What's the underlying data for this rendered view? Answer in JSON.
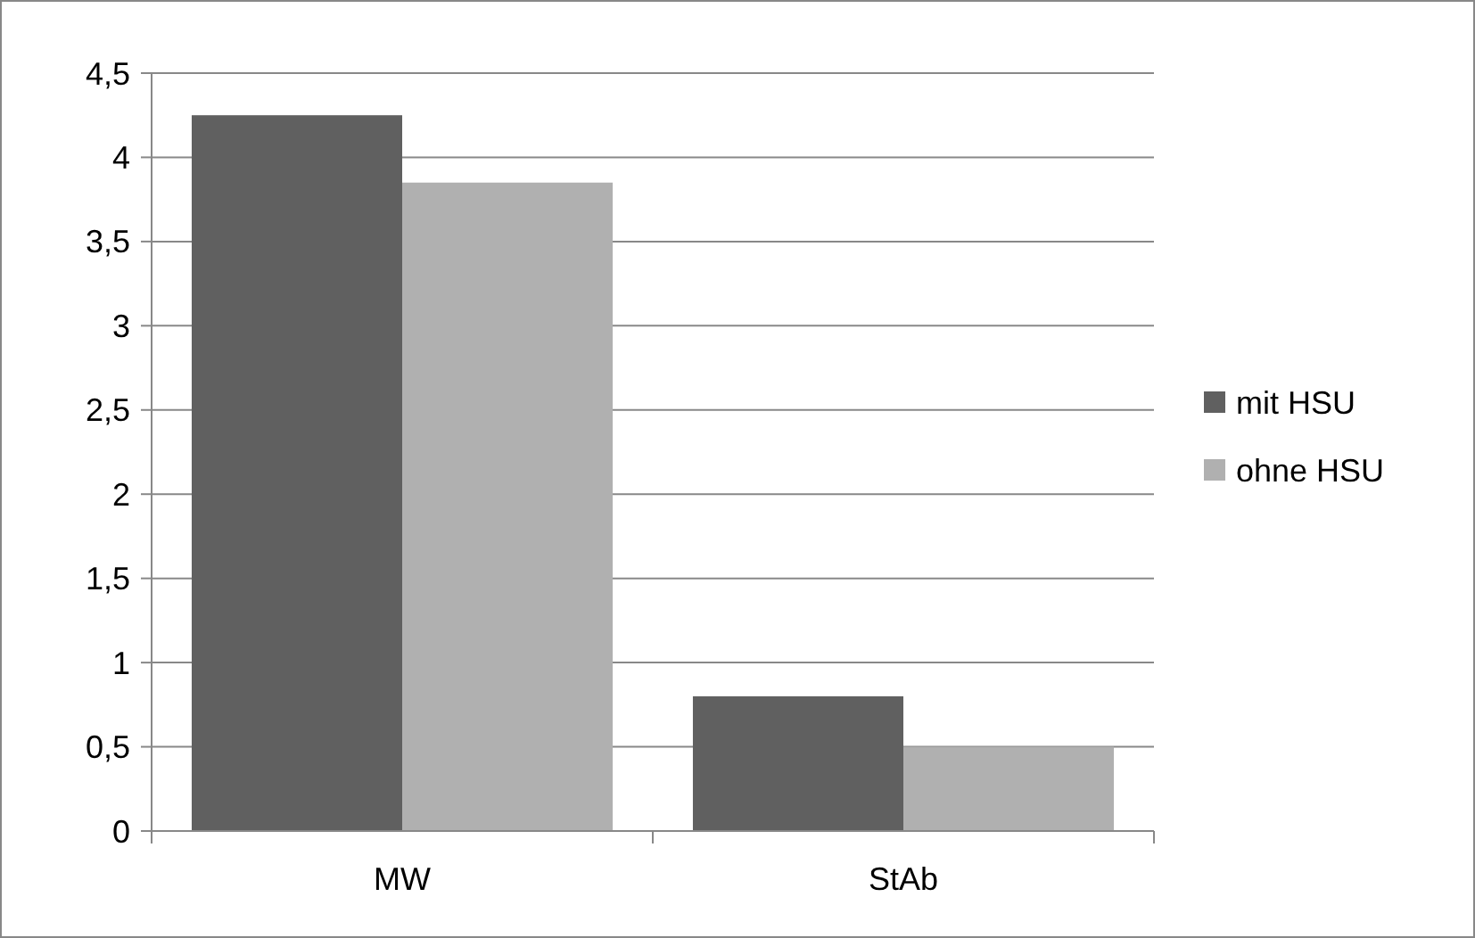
{
  "chart_data": {
    "type": "bar",
    "categories": [
      "MW",
      "StAb"
    ],
    "series": [
      {
        "name": "mit HSU",
        "color": "#606060",
        "values": [
          4.25,
          0.8
        ]
      },
      {
        "name": "ohne HSU",
        "color": "#b0b0b0",
        "values": [
          3.85,
          0.5
        ]
      }
    ],
    "ylim": [
      0,
      4.5
    ],
    "yticks": [
      0,
      {
        "value": 0.5,
        "label": "0,5"
      },
      1,
      {
        "value": 1.5,
        "label": "1,5"
      },
      2,
      {
        "value": 2.5,
        "label": "2,5"
      },
      3,
      {
        "value": 3.5,
        "label": "3,5"
      },
      4,
      {
        "value": 4.5,
        "label": "4,5"
      }
    ],
    "grid": "y",
    "legend": "right"
  }
}
